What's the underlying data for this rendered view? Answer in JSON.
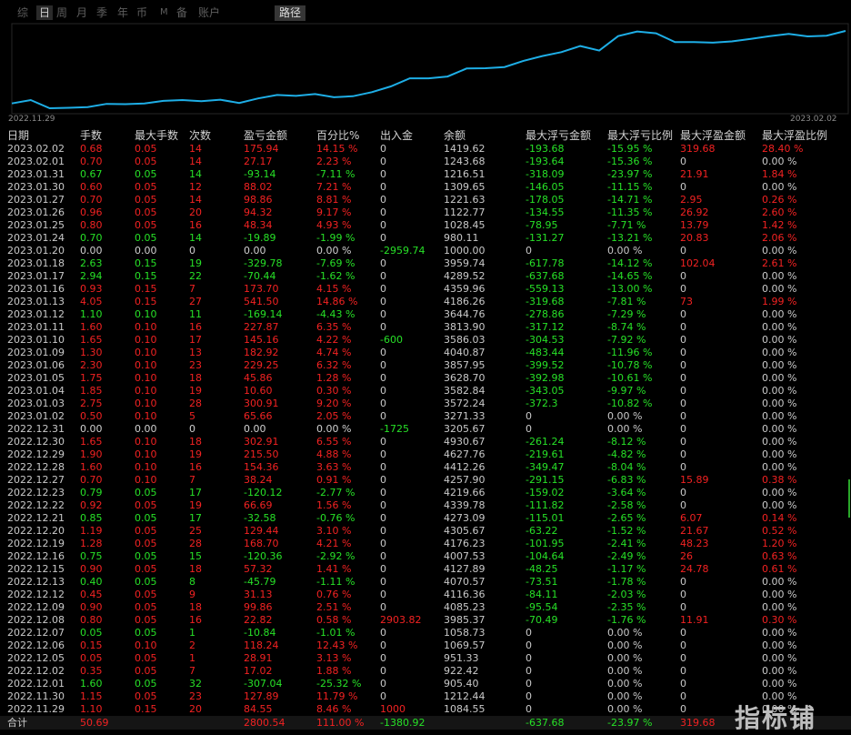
{
  "toolbar": {
    "tabs": [
      {
        "label": "综",
        "active": false
      },
      {
        "label": "日",
        "active": true
      },
      {
        "label": "周",
        "active": false
      },
      {
        "label": "月",
        "active": false
      },
      {
        "label": "季",
        "active": false
      },
      {
        "label": "年",
        "active": false
      },
      {
        "label": "币",
        "active": false
      },
      {
        "label": "M",
        "active": false
      },
      {
        "label": "备",
        "active": false
      },
      {
        "label": "账户",
        "active": false
      }
    ],
    "path_button": "路径"
  },
  "chart_data": {
    "type": "line",
    "x_start": "2022.11.29",
    "x_end": "2023.02.02",
    "line_color": "#1eaee6",
    "series": [
      {
        "x": [
          "2022.11.29",
          "2022.11.30",
          "2022.12.01",
          "2022.12.02",
          "2022.12.05",
          "2022.12.06",
          "2022.12.07",
          "2022.12.08",
          "2022.12.09",
          "2022.12.12",
          "2022.12.13",
          "2022.12.15",
          "2022.12.16",
          "2022.12.19",
          "2022.12.20",
          "2022.12.21",
          "2022.12.22",
          "2022.12.23",
          "2022.12.27",
          "2022.12.28",
          "2022.12.29",
          "2022.12.30",
          "2022.12.31",
          "2023.01.02",
          "2023.01.03",
          "2023.01.04",
          "2023.01.05",
          "2023.01.06",
          "2023.01.09",
          "2023.01.10",
          "2023.01.11",
          "2023.01.12",
          "2023.01.13",
          "2023.01.16",
          "2023.01.17",
          "2023.01.18",
          "2023.01.20",
          "2023.01.24",
          "2023.01.25",
          "2023.01.26",
          "2023.01.27",
          "2023.01.30",
          "2023.01.31",
          "2023.02.01",
          "2023.02.02"
        ],
        "values": [
          1084.55,
          1212.44,
          905.4,
          922.42,
          951.33,
          1069.57,
          1058.73,
          3985.37,
          4085.23,
          4116.36,
          4070.57,
          4127.89,
          4007.53,
          4176.23,
          4305.67,
          4273.09,
          4339.78,
          4219.66,
          4257.9,
          4412.26,
          4627.76,
          4930.67,
          3205.67,
          3271.33,
          3572.24,
          3582.84,
          3628.7,
          3857.95,
          4040.87,
          3586.03,
          3813.9,
          3644.76,
          4186.26,
          4359.96,
          4289.52,
          3959.74,
          1000.0,
          980.11,
          1028.45,
          1122.77,
          1221.63,
          1309.65,
          1216.51,
          1243.68,
          1419.62
        ]
      }
    ]
  },
  "table": {
    "headers": [
      "日期",
      "手数",
      "最大手数",
      "次数",
      "盈亏金额",
      "百分比%",
      "出入金",
      "余额",
      "最大浮亏金额",
      "最大浮亏比例",
      "最大浮盈金额",
      "最大浮盈比例"
    ],
    "rows": [
      [
        "2023.02.02",
        "0.68",
        "0.05",
        "14",
        "175.94",
        "14.15 %",
        "0",
        "1419.62",
        "-193.68",
        "-15.95 %",
        "319.68",
        "28.40 %"
      ],
      [
        "2023.02.01",
        "0.70",
        "0.05",
        "14",
        "27.17",
        "2.23 %",
        "0",
        "1243.68",
        "-193.64",
        "-15.36 %",
        "0",
        "0.00 %"
      ],
      [
        "2023.01.31",
        "0.67",
        "0.05",
        "14",
        "-93.14",
        "-7.11 %",
        "0",
        "1216.51",
        "-318.09",
        "-23.97 %",
        "21.91",
        "1.84 %"
      ],
      [
        "2023.01.30",
        "0.60",
        "0.05",
        "12",
        "88.02",
        "7.21 %",
        "0",
        "1309.65",
        "-146.05",
        "-11.15 %",
        "0",
        "0.00 %"
      ],
      [
        "2023.01.27",
        "0.70",
        "0.05",
        "14",
        "98.86",
        "8.81 %",
        "0",
        "1221.63",
        "-178.05",
        "-14.71 %",
        "2.95",
        "0.26 %"
      ],
      [
        "2023.01.26",
        "0.96",
        "0.05",
        "20",
        "94.32",
        "9.17 %",
        "0",
        "1122.77",
        "-134.55",
        "-11.35 %",
        "26.92",
        "2.60 %"
      ],
      [
        "2023.01.25",
        "0.80",
        "0.05",
        "16",
        "48.34",
        "4.93 %",
        "0",
        "1028.45",
        "-78.95",
        "-7.71 %",
        "13.79",
        "1.42 %"
      ],
      [
        "2023.01.24",
        "0.70",
        "0.05",
        "14",
        "-19.89",
        "-1.99 %",
        "0",
        "980.11",
        "-131.27",
        "-13.21 %",
        "20.83",
        "2.06 %"
      ],
      [
        "2023.01.20",
        "0.00",
        "0.00",
        "0",
        "0.00",
        "0.00 %",
        "-2959.74",
        "1000.00",
        "0",
        "0.00 %",
        "0",
        "0.00 %"
      ],
      [
        "2023.01.18",
        "2.63",
        "0.15",
        "19",
        "-329.78",
        "-7.69 %",
        "0",
        "3959.74",
        "-617.78",
        "-14.12 %",
        "102.04",
        "2.61 %"
      ],
      [
        "2023.01.17",
        "2.94",
        "0.15",
        "22",
        "-70.44",
        "-1.62 %",
        "0",
        "4289.52",
        "-637.68",
        "-14.65 %",
        "0",
        "0.00 %"
      ],
      [
        "2023.01.16",
        "0.93",
        "0.15",
        "7",
        "173.70",
        "4.15 %",
        "0",
        "4359.96",
        "-559.13",
        "-13.00 %",
        "0",
        "0.00 %"
      ],
      [
        "2023.01.13",
        "4.05",
        "0.15",
        "27",
        "541.50",
        "14.86 %",
        "0",
        "4186.26",
        "-319.68",
        "-7.81 %",
        "73",
        "1.99 %"
      ],
      [
        "2023.01.12",
        "1.10",
        "0.10",
        "11",
        "-169.14",
        "-4.43 %",
        "0",
        "3644.76",
        "-278.86",
        "-7.29 %",
        "0",
        "0.00 %"
      ],
      [
        "2023.01.11",
        "1.60",
        "0.10",
        "16",
        "227.87",
        "6.35 %",
        "0",
        "3813.90",
        "-317.12",
        "-8.74 %",
        "0",
        "0.00 %"
      ],
      [
        "2023.01.10",
        "1.65",
        "0.10",
        "17",
        "145.16",
        "4.22 %",
        "-600",
        "3586.03",
        "-304.53",
        "-7.92 %",
        "0",
        "0.00 %"
      ],
      [
        "2023.01.09",
        "1.30",
        "0.10",
        "13",
        "182.92",
        "4.74 %",
        "0",
        "4040.87",
        "-483.44",
        "-11.96 %",
        "0",
        "0.00 %"
      ],
      [
        "2023.01.06",
        "2.30",
        "0.10",
        "23",
        "229.25",
        "6.32 %",
        "0",
        "3857.95",
        "-399.52",
        "-10.78 %",
        "0",
        "0.00 %"
      ],
      [
        "2023.01.05",
        "1.75",
        "0.10",
        "18",
        "45.86",
        "1.28 %",
        "0",
        "3628.70",
        "-392.98",
        "-10.61 %",
        "0",
        "0.00 %"
      ],
      [
        "2023.01.04",
        "1.85",
        "0.10",
        "19",
        "10.60",
        "0.30 %",
        "0",
        "3582.84",
        "-343.05",
        "-9.97 %",
        "0",
        "0.00 %"
      ],
      [
        "2023.01.03",
        "2.75",
        "0.10",
        "28",
        "300.91",
        "9.20 %",
        "0",
        "3572.24",
        "-372.3",
        "-10.82 %",
        "0",
        "0.00 %"
      ],
      [
        "2023.01.02",
        "0.50",
        "0.10",
        "5",
        "65.66",
        "2.05 %",
        "0",
        "3271.33",
        "0",
        "0.00 %",
        "0",
        "0.00 %"
      ],
      [
        "2022.12.31",
        "0.00",
        "0.00",
        "0",
        "0.00",
        "0.00 %",
        "-1725",
        "3205.67",
        "0",
        "0.00 %",
        "0",
        "0.00 %"
      ],
      [
        "2022.12.30",
        "1.65",
        "0.10",
        "18",
        "302.91",
        "6.55 %",
        "0",
        "4930.67",
        "-261.24",
        "-8.12 %",
        "0",
        "0.00 %"
      ],
      [
        "2022.12.29",
        "1.90",
        "0.10",
        "19",
        "215.50",
        "4.88 %",
        "0",
        "4627.76",
        "-219.61",
        "-4.82 %",
        "0",
        "0.00 %"
      ],
      [
        "2022.12.28",
        "1.60",
        "0.10",
        "16",
        "154.36",
        "3.63 %",
        "0",
        "4412.26",
        "-349.47",
        "-8.04 %",
        "0",
        "0.00 %"
      ],
      [
        "2022.12.27",
        "0.70",
        "0.10",
        "7",
        "38.24",
        "0.91 %",
        "0",
        "4257.90",
        "-291.15",
        "-6.83 %",
        "15.89",
        "0.38 %"
      ],
      [
        "2022.12.23",
        "0.79",
        "0.05",
        "17",
        "-120.12",
        "-2.77 %",
        "0",
        "4219.66",
        "-159.02",
        "-3.64 %",
        "0",
        "0.00 %"
      ],
      [
        "2022.12.22",
        "0.92",
        "0.05",
        "19",
        "66.69",
        "1.56 %",
        "0",
        "4339.78",
        "-111.82",
        "-2.58 %",
        "0",
        "0.00 %"
      ],
      [
        "2022.12.21",
        "0.85",
        "0.05",
        "17",
        "-32.58",
        "-0.76 %",
        "0",
        "4273.09",
        "-115.01",
        "-2.65 %",
        "6.07",
        "0.14 %"
      ],
      [
        "2022.12.20",
        "1.19",
        "0.05",
        "25",
        "129.44",
        "3.10 %",
        "0",
        "4305.67",
        "-63.22",
        "-1.52 %",
        "21.67",
        "0.52 %"
      ],
      [
        "2022.12.19",
        "1.28",
        "0.05",
        "28",
        "168.70",
        "4.21 %",
        "0",
        "4176.23",
        "-101.95",
        "-2.41 %",
        "48.23",
        "1.20 %"
      ],
      [
        "2022.12.16",
        "0.75",
        "0.05",
        "15",
        "-120.36",
        "-2.92 %",
        "0",
        "4007.53",
        "-104.64",
        "-2.49 %",
        "26",
        "0.63 %"
      ],
      [
        "2022.12.15",
        "0.90",
        "0.05",
        "18",
        "57.32",
        "1.41 %",
        "0",
        "4127.89",
        "-48.25",
        "-1.17 %",
        "24.78",
        "0.61 %"
      ],
      [
        "2022.12.13",
        "0.40",
        "0.05",
        "8",
        "-45.79",
        "-1.11 %",
        "0",
        "4070.57",
        "-73.51",
        "-1.78 %",
        "0",
        "0.00 %"
      ],
      [
        "2022.12.12",
        "0.45",
        "0.05",
        "9",
        "31.13",
        "0.76 %",
        "0",
        "4116.36",
        "-84.11",
        "-2.03 %",
        "0",
        "0.00 %"
      ],
      [
        "2022.12.09",
        "0.90",
        "0.05",
        "18",
        "99.86",
        "2.51 %",
        "0",
        "4085.23",
        "-95.54",
        "-2.35 %",
        "0",
        "0.00 %"
      ],
      [
        "2022.12.08",
        "0.80",
        "0.05",
        "16",
        "22.82",
        "0.58 %",
        "2903.82",
        "3985.37",
        "-70.49",
        "-1.76 %",
        "11.91",
        "0.30 %"
      ],
      [
        "2022.12.07",
        "0.05",
        "0.05",
        "1",
        "-10.84",
        "-1.01 %",
        "0",
        "1058.73",
        "0",
        "0.00 %",
        "0",
        "0.00 %"
      ],
      [
        "2022.12.06",
        "0.15",
        "0.10",
        "2",
        "118.24",
        "12.43 %",
        "0",
        "1069.57",
        "0",
        "0.00 %",
        "0",
        "0.00 %"
      ],
      [
        "2022.12.05",
        "0.05",
        "0.05",
        "1",
        "28.91",
        "3.13 %",
        "0",
        "951.33",
        "0",
        "0.00 %",
        "0",
        "0.00 %"
      ],
      [
        "2022.12.02",
        "0.35",
        "0.05",
        "7",
        "17.02",
        "1.88 %",
        "0",
        "922.42",
        "0",
        "0.00 %",
        "0",
        "0.00 %"
      ],
      [
        "2022.12.01",
        "1.60",
        "0.05",
        "32",
        "-307.04",
        "-25.32 %",
        "0",
        "905.40",
        "0",
        "0.00 %",
        "0",
        "0.00 %"
      ],
      [
        "2022.11.30",
        "1.15",
        "0.05",
        "23",
        "127.89",
        "11.79 %",
        "0",
        "1212.44",
        "0",
        "0.00 %",
        "0",
        "0.00 %"
      ],
      [
        "2022.11.29",
        "1.10",
        "0.15",
        "20",
        "84.55",
        "8.46 %",
        "1000",
        "1084.55",
        "0",
        "0.00 %",
        "0",
        "0.00 %"
      ]
    ],
    "total": [
      "合计",
      "50.69",
      "",
      "",
      "2800.54",
      "111.00 %",
      "-1380.92",
      "",
      "-637.68",
      "-23.97 %",
      "319.68",
      ""
    ]
  },
  "watermark": "指标铺",
  "colors": {
    "positive": "#f22222",
    "negative": "#27e027",
    "neutral": "#c9c9c9",
    "background": "#000000"
  }
}
